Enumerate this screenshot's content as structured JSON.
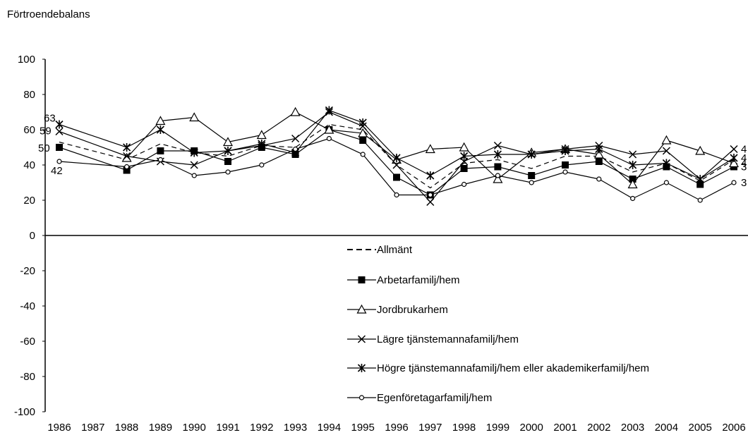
{
  "chart_data": {
    "type": "line",
    "title": "Förtroendebalans",
    "xlabel": "",
    "ylabel": "",
    "ylim": [
      -100,
      100
    ],
    "yticks": [
      100,
      80,
      60,
      40,
      20,
      0,
      -20,
      -40,
      -60,
      -80,
      -100
    ],
    "x": [
      "1986",
      "1987",
      "1988",
      "1989",
      "1990",
      "1991",
      "1992",
      "1993",
      "1994",
      "1995",
      "1996",
      "1997",
      "1998",
      "1999",
      "2000",
      "2001",
      "2002",
      "2003",
      "2004",
      "2005",
      "2006"
    ],
    "grid": false,
    "legend": "bottom-center",
    "series": [
      {
        "name": "Allmänt",
        "marker": "none",
        "dash": true,
        "values": [
          53,
          null,
          43,
          52,
          47,
          45,
          51,
          50,
          63,
          60,
          40,
          27,
          41,
          43,
          38,
          45,
          45,
          36,
          41,
          31,
          43
        ]
      },
      {
        "name": "Arbetarfamilj/hem",
        "marker": "square",
        "values": [
          50,
          null,
          37,
          48,
          48,
          42,
          50,
          46,
          60,
          54,
          33,
          23,
          38,
          39,
          34,
          40,
          42,
          32,
          39,
          29,
          39
        ]
      },
      {
        "name": "Jordbrukarhem",
        "marker": "triangle",
        "values": [
          null,
          null,
          44,
          65,
          67,
          53,
          57,
          70,
          60,
          58,
          43,
          49,
          50,
          32,
          47,
          49,
          46,
          29,
          54,
          48,
          41
        ]
      },
      {
        "name": "Lägre tjänstemannafamilj/hem",
        "marker": "x",
        "values": [
          59,
          null,
          45,
          42,
          40,
          48,
          51,
          55,
          70,
          62,
          40,
          19,
          42,
          51,
          46,
          49,
          51,
          46,
          48,
          32,
          49
        ]
      },
      {
        "name": "Högre tjänstemannafamilj/hem eller akademikerfamilj/hem",
        "marker": "asterisk",
        "values": [
          63,
          null,
          50,
          60,
          47,
          48,
          52,
          47,
          71,
          64,
          44,
          34,
          45,
          46,
          46,
          48,
          49,
          40,
          41,
          32,
          44
        ]
      },
      {
        "name": "Egenföretagarfamilj/hem",
        "marker": "circle",
        "values": [
          42,
          null,
          39,
          43,
          34,
          36,
          40,
          49,
          55,
          46,
          23,
          23,
          29,
          34,
          30,
          36,
          32,
          21,
          30,
          20,
          30
        ]
      }
    ],
    "annotations": [
      {
        "text": "63",
        "year": "1986",
        "y": 63
      },
      {
        "text": "59",
        "year": "1986",
        "y": 59
      },
      {
        "text": "50",
        "year": "1986",
        "y": 50
      },
      {
        "text": "42",
        "year": "1986",
        "y": 42
      }
    ]
  }
}
